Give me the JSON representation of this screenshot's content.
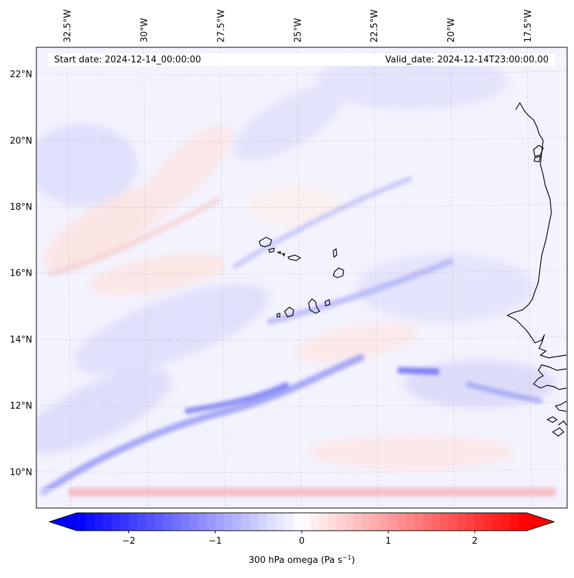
{
  "map": {
    "start_date": "Start date: 2024-12-14_00:00:00",
    "valid_date": "Valid_date: 2024-12-14T23:00:00.00",
    "longitude_labels": [
      "32.5°W",
      "30°W",
      "27.5°W",
      "25°W",
      "22.5°W",
      "20°W",
      "17.5°W"
    ],
    "latitude_labels": [
      "22°N",
      "20°N",
      "18°N",
      "16°N",
      "14°N",
      "12°N",
      "10°N"
    ],
    "longitudes": [
      -32.5,
      -30,
      -27.5,
      -25,
      -22.5,
      -20,
      -17.5
    ],
    "latitudes": [
      22,
      20,
      18,
      16,
      14,
      12,
      10
    ],
    "extent": {
      "lon_min": -33.5,
      "lon_max": -16.2,
      "lat_min": 8.9,
      "lat_max": 22.8
    }
  },
  "colorbar": {
    "label_main": "300 hPa omega (Pa s",
    "label_exp": "−1",
    "label_close": ")",
    "tick_labels": [
      "−2",
      "−1",
      "0",
      "1",
      "2"
    ],
    "ticks": [
      -2,
      -1,
      0,
      1,
      2
    ],
    "range": [
      -2.6,
      2.6
    ],
    "cmap": "bwr",
    "colors": {
      "negative": "#0000ff",
      "zero": "#ffffff",
      "positive": "#ff0000"
    }
  }
}
